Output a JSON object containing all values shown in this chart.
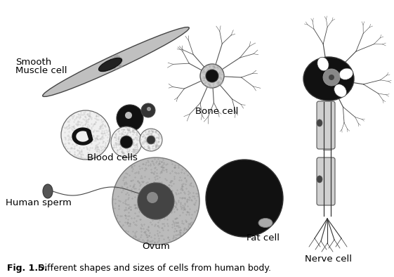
{
  "title_bold": "Fig. 1.5.",
  "title_normal": " Different shapes and sizes of cells from human body.",
  "labels": {
    "smooth_muscle_1": "Smooth",
    "smooth_muscle_2": "Muscle cell",
    "blood_cells": "Blood cells",
    "bone_cell": "Bone cell",
    "nerve_cell": "Nerve cell",
    "human_sperm": "Human sperm",
    "ovum": "Ovum",
    "fat_cell": "Fat cell"
  },
  "bg_color": "#ffffff",
  "label_fontsize": 9.5,
  "title_fontsize": 9
}
